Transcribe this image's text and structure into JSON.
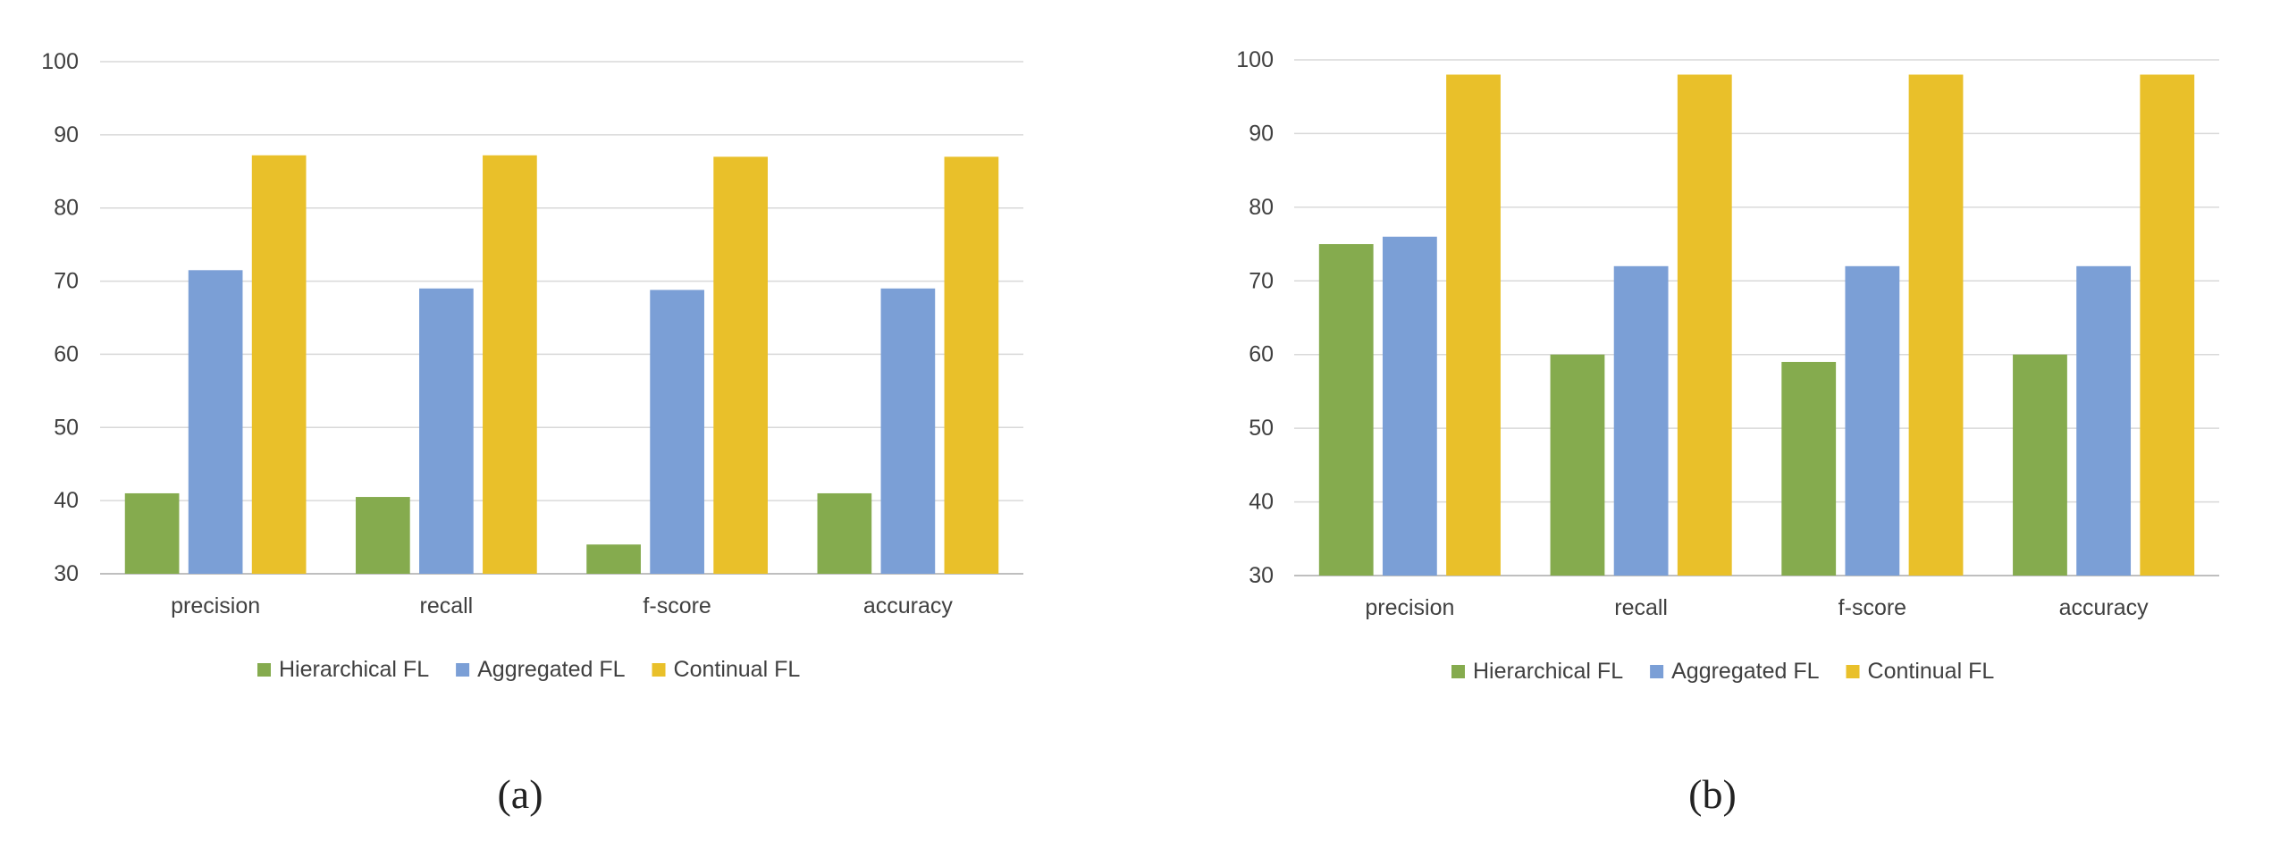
{
  "chart_data": [
    {
      "type": "bar",
      "title": "",
      "xlabel": "",
      "ylabel": "",
      "categories": [
        "precision",
        "recall",
        "f-score",
        "accuracy"
      ],
      "ylim": [
        30,
        100
      ],
      "yticks": [
        30,
        40,
        50,
        60,
        70,
        80,
        90,
        100
      ],
      "grid": true,
      "legend_position": "bottom",
      "series": [
        {
          "name": "Hierarchical FL",
          "color": "#85ab4e",
          "values": [
            41,
            40.5,
            34,
            41
          ]
        },
        {
          "name": "Aggregated FL",
          "color": "#7b9fd6",
          "values": [
            71.5,
            69,
            68.8,
            69
          ]
        },
        {
          "name": "Continual FL",
          "color": "#e9c02a",
          "values": [
            87.2,
            87.2,
            87,
            87
          ]
        }
      ]
    },
    {
      "type": "bar",
      "title": "",
      "xlabel": "",
      "ylabel": "",
      "categories": [
        "precision",
        "recall",
        "f-score",
        "accuracy"
      ],
      "ylim": [
        30,
        100
      ],
      "yticks": [
        30,
        40,
        50,
        60,
        70,
        80,
        90,
        100
      ],
      "grid": true,
      "legend_position": "bottom",
      "series": [
        {
          "name": "Hierarchical FL",
          "color": "#85ab4e",
          "values": [
            75,
            60,
            59,
            60
          ]
        },
        {
          "name": "Aggregated FL",
          "color": "#7b9fd6",
          "values": [
            76,
            72,
            72,
            72
          ]
        },
        {
          "name": "Continual FL",
          "color": "#e9c02a",
          "values": [
            98,
            98,
            98,
            98
          ]
        }
      ]
    }
  ],
  "captions": [
    "(a)",
    "(b)"
  ]
}
